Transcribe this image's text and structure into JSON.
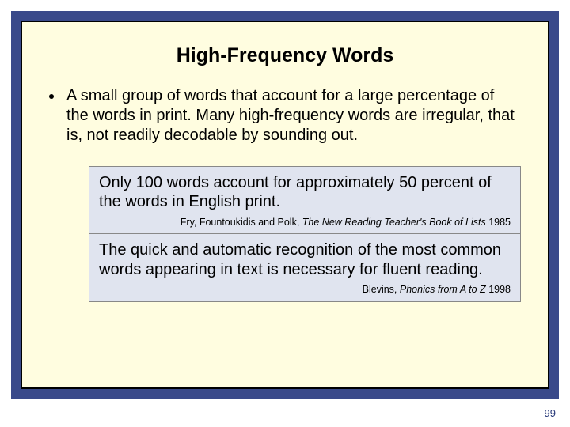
{
  "colors": {
    "outer_background": "#3a4a8a",
    "panel_background": "#fffde0",
    "panel_border": "#000000",
    "callout_background": "#e0e4ef",
    "callout_border": "#888888",
    "text": "#000000",
    "page_num": "#2a3b7a"
  },
  "typography": {
    "title_fontsize": 25,
    "body_fontsize": 20,
    "cite_fontsize": 12.5,
    "pagenum_fontsize": 13,
    "title_weight": "bold"
  },
  "title": "High-Frequency Words",
  "bullet": "A small group of words that account for a large percentage of the words in print. Many high-frequency words are irregular, that is, not readily decodable by sounding out.",
  "callouts": [
    {
      "text": "Only 100 words account for approximately 50 percent of the words in English print.",
      "cite_plain1": "Fry, Fountoukidis and Polk, ",
      "cite_ital": "The New Reading Teacher's Book of Lists",
      "cite_plain2": " 1985"
    },
    {
      "text": "The quick and automatic recognition of the most common words appearing in text is necessary for fluent reading.",
      "cite_plain1": "Blevins, ",
      "cite_ital": "Phonics from A to Z",
      "cite_plain2": " 1998"
    }
  ],
  "page_number": "99"
}
